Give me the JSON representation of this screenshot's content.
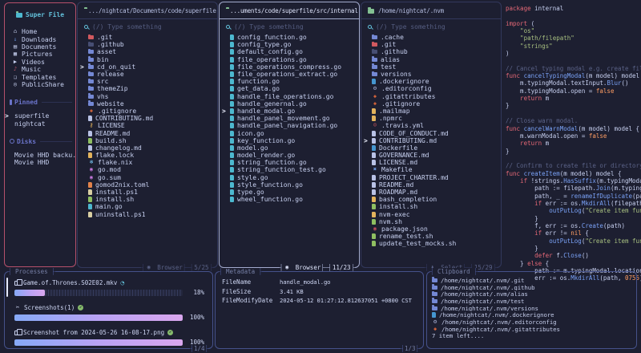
{
  "sidebar": {
    "title": "Super File",
    "home_items": [
      {
        "label": "Home",
        "icon": "home"
      },
      {
        "label": "Downloads",
        "icon": "downloads"
      },
      {
        "label": "Documents",
        "icon": "documents"
      },
      {
        "label": "Pictures",
        "icon": "pictures"
      },
      {
        "label": "Videos",
        "icon": "videos"
      },
      {
        "label": "Music",
        "icon": "music"
      },
      {
        "label": "Templates",
        "icon": "templates"
      },
      {
        "label": "PublicShare",
        "icon": "share"
      }
    ],
    "pinned_label": "Pinned",
    "pinned_items": [
      {
        "label": "superfile",
        "cursor": true
      },
      {
        "label": "nightcat",
        "cursor": false
      }
    ],
    "disks_label": "Disks",
    "disk_items": [
      {
        "label": "Movie HHD backu..."
      },
      {
        "label": "Movie HHD"
      }
    ]
  },
  "panels": [
    {
      "path": ".../nightcat/Documents/code/superfile",
      "search_placeholder": "(/) Type something",
      "focused": false,
      "mode_label": "Browser",
      "mode_icon": "browser",
      "counter": "5/25",
      "files": [
        {
          "n": ".git",
          "i": "folder",
          "c": "#d1595f"
        },
        {
          "n": ".github",
          "i": "folder",
          "c": "#474e73"
        },
        {
          "n": "asset",
          "i": "folder",
          "c": "#7488d4"
        },
        {
          "n": "bin",
          "i": "folder",
          "c": "#7488d4"
        },
        {
          "n": "cd_on_quit",
          "i": "folder",
          "c": "#7488d4",
          "cur": true
        },
        {
          "n": "release",
          "i": "folder",
          "c": "#7488d4"
        },
        {
          "n": "src",
          "i": "folder",
          "c": "#7488d4"
        },
        {
          "n": "themeZip",
          "i": "folder",
          "c": "#7488d4"
        },
        {
          "n": "vhs",
          "i": "folder",
          "c": "#7488d4"
        },
        {
          "n": "website",
          "i": "folder",
          "c": "#7488d4"
        },
        {
          "n": ".gitignore",
          "i": "git",
          "c": "#ee6d3c"
        },
        {
          "n": "CONTRIBUTING.md",
          "i": "file",
          "c": "#b9c2e6"
        },
        {
          "n": "LICENSE",
          "i": "key",
          "c": "#e3b35c"
        },
        {
          "n": "README.md",
          "i": "file",
          "c": "#b9c2e6"
        },
        {
          "n": "build.sh",
          "i": "file",
          "c": "#8fbf61"
        },
        {
          "n": "changelog.md",
          "i": "file",
          "c": "#b9c2e6"
        },
        {
          "n": "flake.lock",
          "i": "file",
          "c": "#e3b35c"
        },
        {
          "n": "flake.nix",
          "i": "snow",
          "c": "#7dcfff"
        },
        {
          "n": "go.mod",
          "i": "go",
          "c": "#c678dd"
        },
        {
          "n": "go.sum",
          "i": "go",
          "c": "#c678dd"
        },
        {
          "n": "gomod2nix.toml",
          "i": "file",
          "c": "#e2824a"
        },
        {
          "n": "install.ps1",
          "i": "file",
          "c": "#d9cfa3"
        },
        {
          "n": "install.sh",
          "i": "file",
          "c": "#8fbf61"
        },
        {
          "n": "main.go",
          "i": "file",
          "c": "#4db8cf"
        },
        {
          "n": "uninstall.ps1",
          "i": "file",
          "c": "#d9cfa3"
        }
      ]
    },
    {
      "path": "...uments/code/superfile/src/internal",
      "search_placeholder": "(/) Type something",
      "focused": true,
      "mode_label": "Browser",
      "mode_icon": "browser",
      "counter": "11/23",
      "files": [
        {
          "n": "config_function.go",
          "i": "file",
          "c": "#4db8cf"
        },
        {
          "n": "config_type.go",
          "i": "file",
          "c": "#4db8cf"
        },
        {
          "n": "default_config.go",
          "i": "file",
          "c": "#4db8cf"
        },
        {
          "n": "file_operations.go",
          "i": "file",
          "c": "#4db8cf"
        },
        {
          "n": "file_operations_compress.go",
          "i": "file",
          "c": "#4db8cf"
        },
        {
          "n": "file_operations_extract.go",
          "i": "file",
          "c": "#4db8cf"
        },
        {
          "n": "function.go",
          "i": "file",
          "c": "#4db8cf"
        },
        {
          "n": "get_data.go",
          "i": "file",
          "c": "#4db8cf"
        },
        {
          "n": "handle_file_operations.go",
          "i": "file",
          "c": "#4db8cf"
        },
        {
          "n": "handle_genernal.go",
          "i": "file",
          "c": "#4db8cf"
        },
        {
          "n": "handle_modal.go",
          "i": "file",
          "c": "#4db8cf",
          "cur": true
        },
        {
          "n": "handle_panel_movement.go",
          "i": "file",
          "c": "#4db8cf"
        },
        {
          "n": "handle_panel_navigation.go",
          "i": "file",
          "c": "#4db8cf"
        },
        {
          "n": "icon.go",
          "i": "file",
          "c": "#4db8cf"
        },
        {
          "n": "key_function.go",
          "i": "file",
          "c": "#4db8cf"
        },
        {
          "n": "model.go",
          "i": "file",
          "c": "#4db8cf"
        },
        {
          "n": "model_render.go",
          "i": "file",
          "c": "#4db8cf"
        },
        {
          "n": "string_function.go",
          "i": "file",
          "c": "#4db8cf"
        },
        {
          "n": "string_function_test.go",
          "i": "file",
          "c": "#4db8cf"
        },
        {
          "n": "style.go",
          "i": "file",
          "c": "#4db8cf"
        },
        {
          "n": "style_function.go",
          "i": "file",
          "c": "#4db8cf"
        },
        {
          "n": "type.go",
          "i": "file",
          "c": "#4db8cf"
        },
        {
          "n": "wheel_function.go",
          "i": "file",
          "c": "#4db8cf"
        }
      ]
    },
    {
      "path": "/home/nightcat/.nvm",
      "search_placeholder": "(/) Type something",
      "focused": false,
      "mode_label": "Select",
      "mode_icon": "select",
      "counter": "15/29",
      "files": [
        {
          "n": ".cache",
          "i": "folder",
          "c": "#7488d4"
        },
        {
          "n": ".git",
          "i": "folder",
          "c": "#d1595f"
        },
        {
          "n": ".github",
          "i": "folder",
          "c": "#474e73"
        },
        {
          "n": "alias",
          "i": "folder",
          "c": "#7488d4"
        },
        {
          "n": "test",
          "i": "folder",
          "c": "#7488d4"
        },
        {
          "n": "versions",
          "i": "folder",
          "c": "#7488d4"
        },
        {
          "n": ".dockerignore",
          "i": "whale",
          "c": "#4596d0"
        },
        {
          "n": ".editorconfig",
          "i": "gear",
          "c": "#a9b1d6"
        },
        {
          "n": ".gitattributes",
          "i": "git",
          "c": "#ee6d3c"
        },
        {
          "n": ".gitignore",
          "i": "git",
          "c": "#ee6d3c"
        },
        {
          "n": ".mailmap",
          "i": "file",
          "c": "#e3b35c"
        },
        {
          "n": ".npmrc",
          "i": "file",
          "c": "#e3b35c"
        },
        {
          "n": ".travis.yml",
          "i": "person",
          "c": "#d1595f"
        },
        {
          "n": "CODE_OF_CONDUCT.md",
          "i": "file",
          "c": "#b9c2e6"
        },
        {
          "n": "CONTRIBUTING.md",
          "i": "file",
          "c": "#b9c2e6",
          "cur": true
        },
        {
          "n": "Dockerfile",
          "i": "whale",
          "c": "#4596d0"
        },
        {
          "n": "GOVERNANCE.md",
          "i": "file",
          "c": "#b9c2e6"
        },
        {
          "n": "LICENSE.md",
          "i": "file",
          "c": "#b9c2e6"
        },
        {
          "n": "Makefile",
          "i": "make",
          "c": "#6d9ae4"
        },
        {
          "n": "PROJECT_CHARTER.md",
          "i": "file",
          "c": "#b9c2e6"
        },
        {
          "n": "README.md",
          "i": "file",
          "c": "#b9c2e6"
        },
        {
          "n": "ROADMAP.md",
          "i": "file",
          "c": "#b9c2e6"
        },
        {
          "n": "bash_completion",
          "i": "file",
          "c": "#e3b35c"
        },
        {
          "n": "install.sh",
          "i": "file",
          "c": "#8fbf61"
        },
        {
          "n": "nvm-exec",
          "i": "file",
          "c": "#e3b35c"
        },
        {
          "n": "nvm.sh",
          "i": "file",
          "c": "#8fbf61"
        },
        {
          "n": "package.json",
          "i": "npm",
          "c": "#c14b5c"
        },
        {
          "n": "rename_test.sh",
          "i": "file",
          "c": "#8fbf61"
        },
        {
          "n": "update_test_mocks.sh",
          "i": "file",
          "c": "#8fbf61"
        }
      ]
    }
  ],
  "preview": {
    "lines": [
      [
        [
          "k",
          "package"
        ],
        [
          "p",
          " internal"
        ]
      ],
      [],
      [
        [
          "k",
          "import"
        ],
        [
          "p",
          " ("
        ]
      ],
      [
        [
          "s",
          "    \"os\""
        ]
      ],
      [
        [
          "s",
          "    \"path/filepath\""
        ]
      ],
      [
        [
          "s",
          "    \"strings\""
        ]
      ],
      [
        [
          "p",
          ")"
        ]
      ],
      [],
      [
        [
          "c",
          "// Cancel typing modal e.g. create file or"
        ]
      ],
      [
        [
          "k",
          "func "
        ],
        [
          "f",
          "cancelTypingModal"
        ],
        [
          "p",
          "(m model) model {"
        ]
      ],
      [
        [
          "p",
          "    m.typingModal.textInput."
        ],
        [
          "f",
          "Blur"
        ],
        [
          "p",
          "()"
        ]
      ],
      [
        [
          "p",
          "    m.typingModal.open = "
        ],
        [
          "n",
          "false"
        ]
      ],
      [
        [
          "k",
          "    return"
        ],
        [
          "p",
          " m"
        ]
      ],
      [
        [
          "p",
          "}"
        ]
      ],
      [],
      [
        [
          "c",
          "// Close warn modal."
        ]
      ],
      [
        [
          "k",
          "func "
        ],
        [
          "f",
          "cancelWarnModal"
        ],
        [
          "p",
          "(m model) model {"
        ]
      ],
      [
        [
          "p",
          "    m.warnModal.open = "
        ],
        [
          "n",
          "false"
        ]
      ],
      [
        [
          "k",
          "    return"
        ],
        [
          "p",
          " m"
        ]
      ],
      [
        [
          "p",
          "}"
        ]
      ],
      [],
      [
        [
          "c",
          "// Confirm to create file or directory"
        ]
      ],
      [
        [
          "k",
          "func "
        ],
        [
          "f",
          "createItem"
        ],
        [
          "p",
          "(m model) model {"
        ]
      ],
      [
        [
          "k",
          "    if"
        ],
        [
          "p",
          " !strings."
        ],
        [
          "f",
          "HasSuffix"
        ],
        [
          "p",
          "(m.typingModal.t"
        ]
      ],
      [
        [
          "p",
          "        path := filepath."
        ],
        [
          "f",
          "Join"
        ],
        [
          "p",
          "(m.typingMod"
        ]
      ],
      [
        [
          "p",
          "        path, _ = "
        ],
        [
          "f",
          "renameIfDuplicate"
        ],
        [
          "p",
          "(path)"
        ]
      ],
      [
        [
          "k",
          "        if"
        ],
        [
          "p",
          " err := os."
        ],
        [
          "f",
          "MkdirAll"
        ],
        [
          "p",
          "(filepath.Di"
        ]
      ],
      [
        [
          "p",
          "            "
        ],
        [
          "f",
          "outPutLog"
        ],
        [
          "p",
          "("
        ],
        [
          "s",
          "\"Create item functi"
        ]
      ],
      [
        [
          "p",
          "        }"
        ]
      ],
      [
        [
          "p",
          "        f, err := os."
        ],
        [
          "f",
          "Create"
        ],
        [
          "p",
          "(path)"
        ]
      ],
      [
        [
          "k",
          "        if"
        ],
        [
          "p",
          " err != "
        ],
        [
          "n",
          "nil"
        ],
        [
          "p",
          " {"
        ]
      ],
      [
        [
          "p",
          "            "
        ],
        [
          "f",
          "outPutLog"
        ],
        [
          "p",
          "("
        ],
        [
          "s",
          "\"Create item functi"
        ]
      ],
      [
        [
          "p",
          "        }"
        ]
      ],
      [
        [
          "k",
          "        defer"
        ],
        [
          "p",
          " f."
        ],
        [
          "f",
          "Close"
        ],
        [
          "p",
          "()"
        ]
      ],
      [
        [
          "p",
          "    } "
        ],
        [
          "k",
          "else"
        ],
        [
          "p",
          " {"
        ]
      ],
      [
        [
          "p",
          "        path := m.typingModal.location +"
        ]
      ],
      [
        [
          "p",
          "        err := os."
        ],
        [
          "f",
          "MkdirAll"
        ],
        [
          "p",
          "(path, "
        ],
        [
          "n",
          "0755"
        ],
        [
          "p",
          ")"
        ]
      ]
    ]
  },
  "processes": {
    "title": "Processes",
    "counter": "1/4",
    "items": [
      {
        "icon": "copy",
        "name": "Game.of.Thrones.S02E02.mkv",
        "status": "spin",
        "pct": 18,
        "pct_label": "18%"
      },
      {
        "icon": "scissors",
        "name": "Screenshots(1)",
        "status": "done",
        "pct": 100,
        "pct_label": "100%"
      },
      {
        "icon": "copy",
        "name": "Screenshot from 2024-05-26 16-08-17.png",
        "status": "done",
        "pct": 100,
        "pct_label": "100%"
      }
    ]
  },
  "metadata": {
    "title": "Metadata",
    "counter": "1/3",
    "rows": [
      {
        "label": "FileName",
        "value": "handle_modal.go"
      },
      {
        "label": "FileSize",
        "value": "3.41 KB"
      },
      {
        "label": "FileModifyDate",
        "value": "2024-05-12 01:27:12.812637051 +0800 CST"
      }
    ]
  },
  "clipboard": {
    "title": "Clipboard",
    "items": [
      {
        "n": "/home/nightcat/.nvm/.git",
        "i": "folder",
        "c": "#7488d4"
      },
      {
        "n": "/home/nightcat/.nvm/.github",
        "i": "folder",
        "c": "#7488d4"
      },
      {
        "n": "/home/nightcat/.nvm/alias",
        "i": "folder",
        "c": "#7488d4"
      },
      {
        "n": "/home/nightcat/.nvm/test",
        "i": "folder",
        "c": "#7488d4"
      },
      {
        "n": "/home/nightcat/.nvm/versions",
        "i": "folder",
        "c": "#7488d4"
      },
      {
        "n": "/home/nightcat/.nvm/.dockerignore",
        "i": "whale",
        "c": "#4596d0"
      },
      {
        "n": "/home/nightcat/.nvm/.editorconfig",
        "i": "gear",
        "c": "#a9b1d6"
      },
      {
        "n": "/home/nightcat/.nvm/.gitattributes",
        "i": "git",
        "c": "#ee6d3c"
      }
    ],
    "more_label": "7 item left...."
  },
  "colors": {
    "background": "#1d1f31",
    "sidebar_border": "#b5506b",
    "panel_border": "#32385c",
    "panel_border_focused": "#a3abce",
    "bottom_border": "#45518a",
    "accent_cyan": "#63c0da",
    "accent_purple": "#6a73c9",
    "progress_gradient_start": "#86a9f7",
    "progress_gradient_end": "#d9a6ee"
  }
}
